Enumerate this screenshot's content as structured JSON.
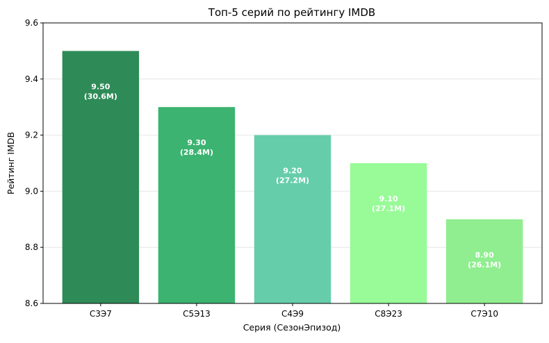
{
  "chart_data": {
    "type": "bar",
    "title": "Топ-5 серий по рейтингу IMDB",
    "xlabel": "Серия (СезонЭпизод)",
    "ylabel": "Рейтинг IMDB",
    "ylim": [
      8.6,
      9.6
    ],
    "yticks": [
      "8.6",
      "8.8",
      "9.0",
      "9.2",
      "9.4",
      "9.6"
    ],
    "grid": "horizontal",
    "categories": [
      "С3Э7",
      "С5Э13",
      "С4Э9",
      "С8Э23",
      "С7Э10"
    ],
    "values": [
      9.5,
      9.3,
      9.2,
      9.1,
      8.9
    ],
    "bar_labels": [
      [
        "9.50",
        "(30.6M)"
      ],
      [
        "9.30",
        "(28.4M)"
      ],
      [
        "9.20",
        "(27.2M)"
      ],
      [
        "9.10",
        "(27.1M)"
      ],
      [
        "8.90",
        "(26.1M)"
      ]
    ],
    "colors": [
      "#2e8b57",
      "#3cb371",
      "#66cdaa",
      "#98fb98",
      "#90ee90"
    ]
  }
}
